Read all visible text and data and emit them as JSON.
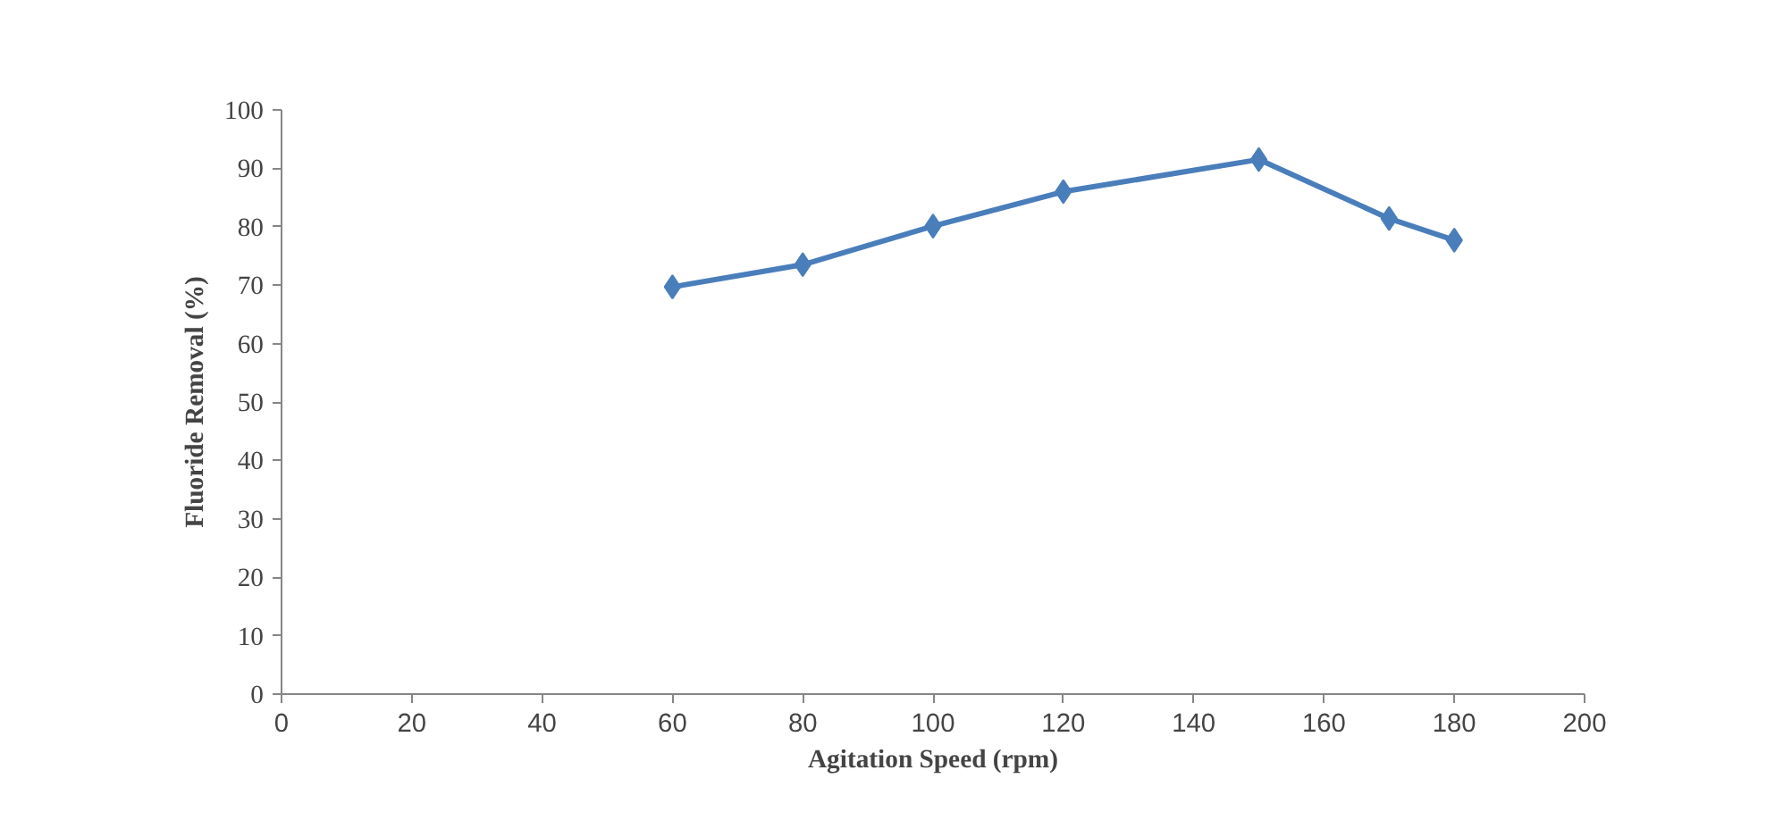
{
  "chart_data": {
    "type": "line",
    "xlabel": "Agitation Speed (rpm)",
    "ylabel": "Fluoride Removal (%)",
    "x": [
      60,
      80,
      100,
      120,
      150,
      170,
      180
    ],
    "series": [
      {
        "color": "#4a7ebb",
        "values": [
          69.7,
          73.5,
          80.1,
          86,
          91.5,
          81.4,
          77.7
        ]
      }
    ],
    "xlim": [
      0,
      200
    ],
    "xticks": [
      0,
      20,
      40,
      60,
      80,
      100,
      120,
      140,
      160,
      180,
      200
    ],
    "ylim": [
      0,
      100
    ],
    "yticks": [
      0,
      10,
      20,
      30,
      40,
      50,
      60,
      70,
      80,
      90,
      100
    ],
    "grid": false,
    "marker": "diamond",
    "line_style": "solid"
  }
}
